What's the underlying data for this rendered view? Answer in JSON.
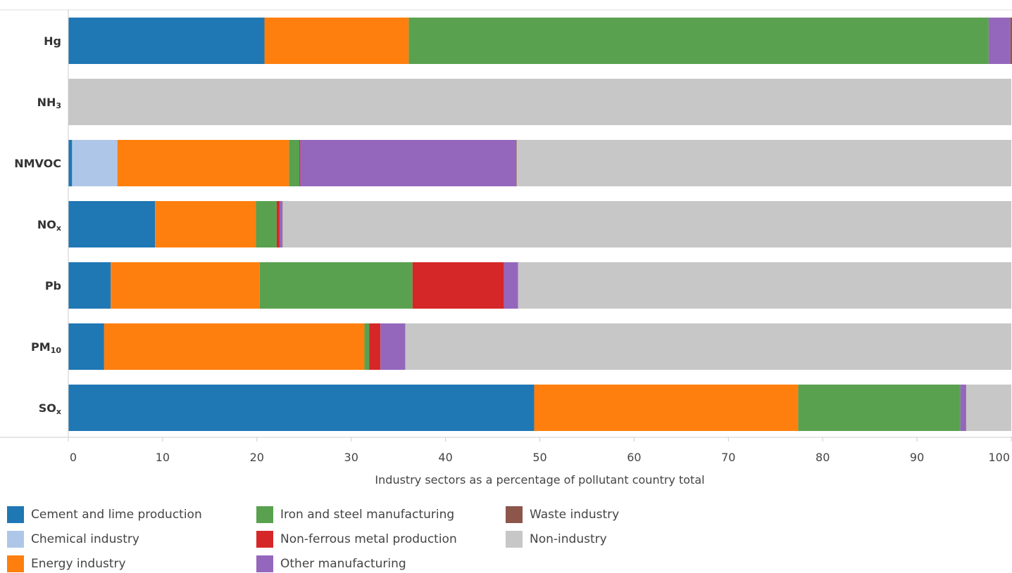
{
  "chart_data": {
    "type": "bar",
    "orientation": "horizontal",
    "stacked": true,
    "categories": [
      {
        "base": "Hg",
        "sub": ""
      },
      {
        "base": "NH",
        "sub": "3"
      },
      {
        "base": "NMVOC",
        "sub": ""
      },
      {
        "base": "NO",
        "sub": "x"
      },
      {
        "base": "Pb",
        "sub": ""
      },
      {
        "base": "PM",
        "sub": "10"
      },
      {
        "base": "SO",
        "sub": "x"
      }
    ],
    "series": [
      {
        "name": "Cement and lime production",
        "color": "#1f77b4",
        "values": [
          20.8,
          0,
          0.4,
          9.2,
          4.5,
          3.8,
          49.4
        ]
      },
      {
        "name": "Chemical industry",
        "color": "#aec7e8",
        "values": [
          0,
          0,
          4.8,
          0,
          0,
          0,
          0
        ]
      },
      {
        "name": "Energy industry",
        "color": "#ff7f0e",
        "values": [
          15.3,
          0,
          18.2,
          10.7,
          15.8,
          27.6,
          28.0
        ]
      },
      {
        "name": "Iron and steel manufacturing",
        "color": "#59a14f",
        "values": [
          61.5,
          0,
          1.1,
          2.2,
          16.2,
          0.5,
          17.2
        ]
      },
      {
        "name": "Non-ferrous metal production",
        "color": "#d62728",
        "values": [
          0,
          0,
          0.1,
          0.3,
          9.7,
          1.2,
          0
        ]
      },
      {
        "name": "Other manufacturing",
        "color": "#9467bd",
        "values": [
          2.3,
          0,
          22.9,
          0.3,
          1.5,
          2.6,
          0.6
        ]
      },
      {
        "name": "Waste industry",
        "color": "#8c564b",
        "values": [
          0.4,
          0,
          0.05,
          0.03,
          0,
          0.03,
          0.03
        ]
      },
      {
        "name": "Non-industry",
        "color": "#c7c7c7",
        "values": [
          0,
          100,
          52.45,
          77.27,
          52.3,
          64.27,
          4.77
        ]
      }
    ],
    "x_ticks": [
      0,
      10,
      20,
      30,
      40,
      50,
      60,
      70,
      80,
      90,
      100
    ],
    "xlim": [
      0,
      100
    ],
    "xlabel": "Industry sectors as a percentage of pollutant country total",
    "ylabel": "",
    "grid": false,
    "legend_position": "bottom"
  }
}
